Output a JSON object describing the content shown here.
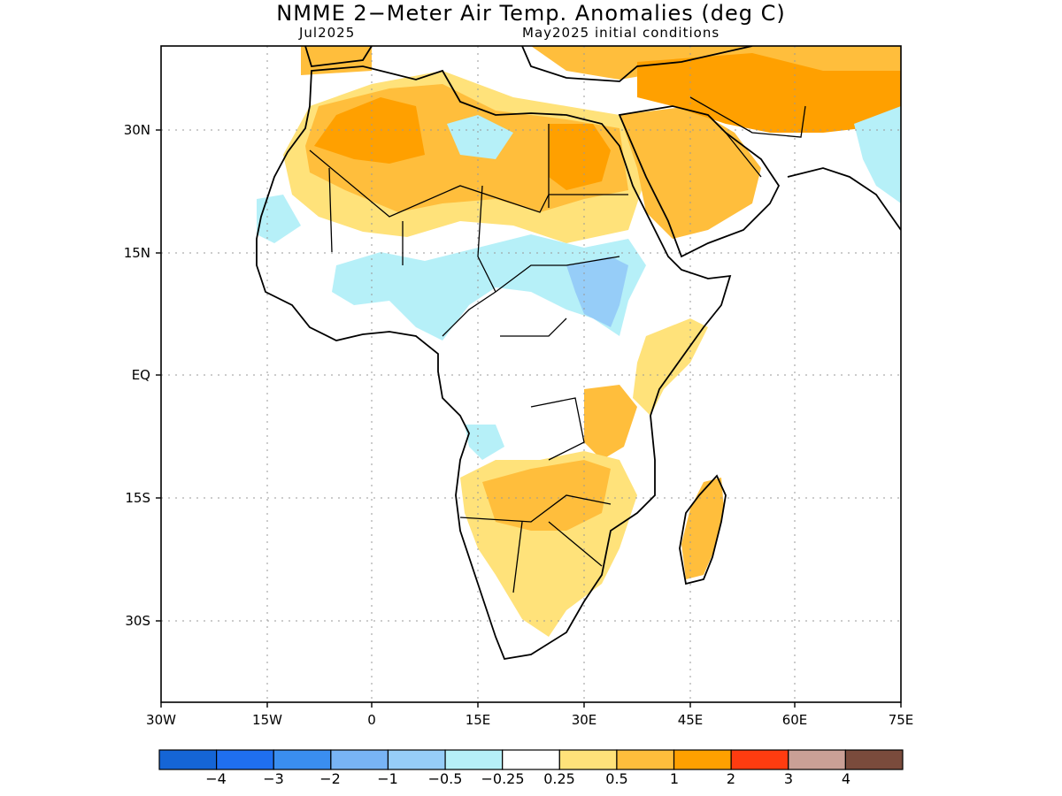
{
  "title": "NMME 2−Meter Air Temp. Anomalies (deg C)",
  "subtitle_left": "Jul2025",
  "subtitle_right": "May2025 initial conditions",
  "axes": {
    "lat_ticks": [
      "30N",
      "15N",
      "EQ",
      "15S",
      "30S"
    ],
    "lon_ticks": [
      "30W",
      "15W",
      "0",
      "15E",
      "30E",
      "45E",
      "60E",
      "75E"
    ]
  },
  "colorbar": {
    "colors": [
      "#1565d6",
      "#1f6ff0",
      "#3a8ef0",
      "#78b4f5",
      "#96cdf8",
      "#b6f0f8",
      "#ffffff",
      "#ffe27a",
      "#ffbe3c",
      "#ffa000",
      "#ff3c10",
      "#caa096",
      "#7a4b3c"
    ],
    "labels": [
      "−4",
      "−3",
      "−2",
      "−1",
      "−0.5",
      "−0.25",
      "0.25",
      "0.5",
      "1",
      "2",
      "3",
      "4"
    ]
  },
  "legend_colors": {
    "land_outline": "#000000",
    "gridline": "#999999"
  }
}
